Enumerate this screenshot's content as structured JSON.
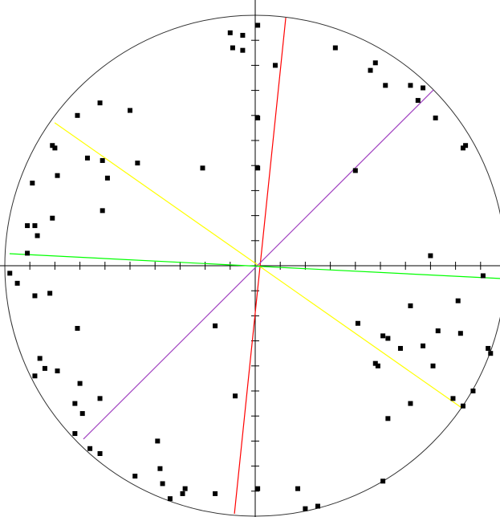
{
  "chart_data": {
    "type": "scatter",
    "color": "#000000",
    "xlim": [
      -1,
      1
    ],
    "ylim": [
      -1,
      1
    ],
    "xticks": [
      -0.9,
      -0.8,
      -0.7,
      -0.6,
      -0.5,
      -0.4,
      -0.3,
      -0.2,
      -0.1,
      0.1,
      0.2,
      0.3,
      0.4,
      0.5,
      0.6,
      0.7,
      0.8,
      0.9
    ],
    "yticks": [
      -0.9,
      -0.8,
      -0.7,
      -0.6,
      -0.5,
      -0.4,
      -0.3,
      -0.2,
      -0.1,
      0.1,
      0.2,
      0.3,
      0.4,
      0.5,
      0.6,
      0.7,
      0.8,
      0.9
    ],
    "x": [
      -0.1,
      -0.05,
      -0.09,
      -0.05,
      0.01,
      0.08,
      0.32,
      0.48,
      0.46,
      0.52,
      0.62,
      0.67,
      0.65,
      0.72,
      0.84,
      0.83,
      -0.62,
      -0.71,
      -0.5,
      -0.81,
      -0.8,
      -0.67,
      -0.61,
      -0.47,
      -0.21,
      -0.59,
      -0.79,
      -0.89,
      -0.61,
      -0.81,
      -0.91,
      -0.88,
      -0.87,
      -0.91,
      -0.98,
      -0.95,
      -0.88,
      -0.82,
      -0.71,
      -0.16,
      0.01,
      0.4,
      0.7,
      0.91,
      0.62,
      0.81,
      0.41,
      0.51,
      0.53,
      0.58,
      0.67,
      0.73,
      0.82,
      0.93,
      0.94,
      0.48,
      0.49,
      0.71,
      -0.86,
      -0.84,
      -0.79,
      -0.88,
      -0.7,
      -0.72,
      -0.62,
      -0.69,
      0.79,
      0.87,
      0.83,
      0.62,
      0.53,
      -0.72,
      -0.66,
      -0.62,
      -0.39,
      -0.08,
      -0.38,
      -0.48,
      -0.37,
      -0.28,
      -0.29,
      -0.34,
      -0.16,
      0.01,
      0.17,
      0.51,
      0.25,
      0.2,
      0.01
    ],
    "values": [
      0.93,
      0.92,
      0.87,
      0.86,
      0.96,
      0.8,
      0.87,
      0.81,
      0.78,
      0.72,
      0.72,
      0.71,
      0.66,
      0.59,
      0.48,
      0.47,
      0.65,
      0.6,
      0.62,
      0.48,
      0.47,
      0.43,
      0.42,
      0.41,
      0.39,
      0.35,
      0.36,
      0.33,
      0.22,
      0.19,
      0.16,
      0.16,
      0.12,
      0.05,
      -0.03,
      -0.07,
      -0.12,
      -0.11,
      -0.25,
      -0.24,
      0.59,
      0.38,
      0.04,
      -0.04,
      -0.16,
      -0.14,
      -0.23,
      -0.28,
      -0.29,
      -0.33,
      -0.32,
      -0.26,
      -0.27,
      -0.33,
      -0.35,
      -0.39,
      -0.4,
      -0.4,
      -0.37,
      -0.41,
      -0.42,
      -0.44,
      -0.47,
      -0.55,
      -0.53,
      -0.59,
      -0.53,
      -0.5,
      -0.56,
      -0.55,
      -0.61,
      -0.67,
      -0.73,
      -0.75,
      -0.7,
      -0.52,
      -0.81,
      -0.84,
      -0.87,
      -0.89,
      -0.91,
      -0.93,
      -0.91,
      -0.89,
      -0.89,
      -0.86,
      -0.96,
      -0.97,
      0.39
    ],
    "lines": [
      {
        "color": "#ff0000",
        "x": [
          -0.083,
          0.122
        ],
        "y": [
          -0.99,
          0.99
        ]
      },
      {
        "color": "#ffff00",
        "x": [
          -0.801,
          0.824
        ],
        "y": [
          0.571,
          -0.567
        ]
      },
      {
        "color": "#a040c0",
        "x": [
          -0.686,
          0.712
        ],
        "y": [
          -0.692,
          0.702
        ]
      },
      {
        "color": "#00ff00",
        "x": [
          -0.981,
          0.978
        ],
        "y": [
          0.048,
          -0.051
        ]
      }
    ]
  }
}
